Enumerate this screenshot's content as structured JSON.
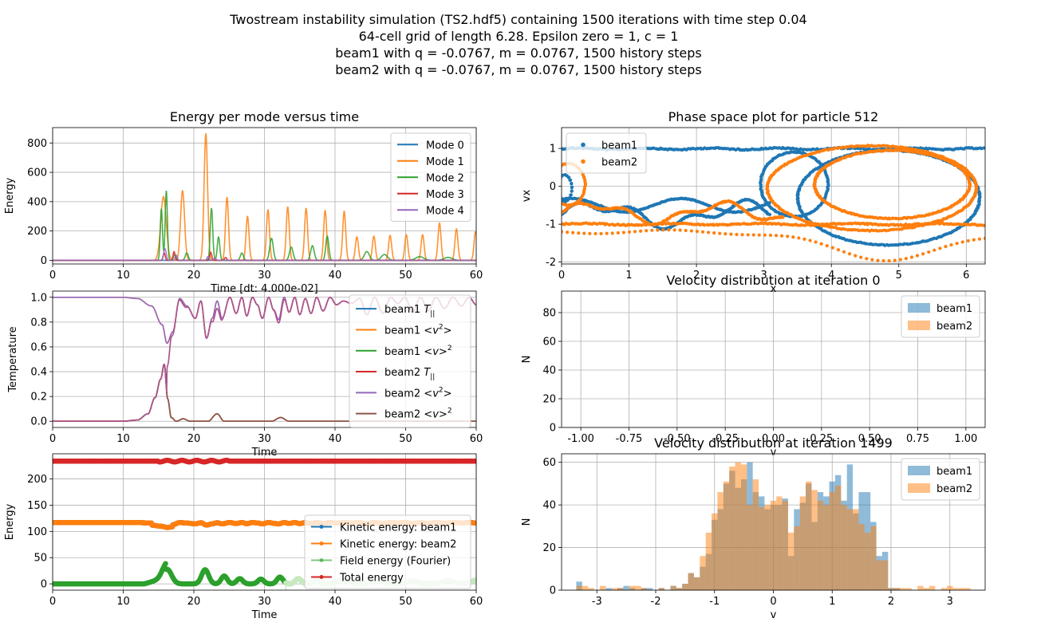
{
  "suptitle": [
    "Twostream instability simulation (TS2.hdf5) containing 1500 iterations with time step 0.04",
    "64-cell grid of length 6.28. Epsilon zero = 1, c = 1",
    "beam1 with q = -0.0767, m = 0.0767, 1500 history steps",
    "beam2 with q = -0.0767, m = 0.0767, 1500 history steps"
  ],
  "colors": {
    "c0": "#1f77b4",
    "c1": "#ff7f0e",
    "c2": "#2ca02c",
    "c3": "#d62728",
    "c4": "#9467bd",
    "c5": "#8c564b"
  },
  "chart_data": [
    {
      "id": "energy_modes",
      "type": "line",
      "title": "Energy per mode versus time",
      "xlabel": "Time [dt: 4.000e-02]",
      "ylabel": "Energy",
      "xlim": [
        0,
        60
      ],
      "ylim": [
        -25,
        905
      ],
      "xticks": [
        0,
        10,
        20,
        30,
        40,
        50,
        60
      ],
      "yticks": [
        0,
        200,
        400,
        600,
        800
      ],
      "grid": true,
      "legend": "top-right",
      "series": [
        {
          "name": "Mode 0",
          "color": "#1f77b4",
          "x": [
            0,
            60
          ],
          "y": [
            0,
            0
          ]
        },
        {
          "name": "Mode 1",
          "color": "#ff7f0e",
          "peaks": [
            [
              15.7,
              435,
              0.55
            ],
            [
              18.4,
              475,
              0.4
            ],
            [
              21.7,
              865,
              0.35
            ],
            [
              24.7,
              430,
              0.3
            ],
            [
              27.6,
              300,
              0.3
            ],
            [
              30.5,
              345,
              0.3
            ],
            [
              33.3,
              365,
              0.3
            ],
            [
              35.9,
              355,
              0.3
            ],
            [
              38.6,
              340,
              0.3
            ],
            [
              41.3,
              335,
              0.3
            ],
            [
              43.1,
              160,
              0.3
            ],
            [
              45.5,
              165,
              0.3
            ],
            [
              47.8,
              170,
              0.3
            ],
            [
              50.1,
              175,
              0.3
            ],
            [
              52.4,
              175,
              0.3
            ],
            [
              54.8,
              255,
              0.3
            ],
            [
              57.2,
              215,
              0.3
            ],
            [
              59.9,
              195,
              0.3
            ]
          ]
        },
        {
          "name": "Mode 2",
          "color": "#2ca02c",
          "peaks": [
            [
              15.4,
              350,
              0.22
            ],
            [
              16.1,
              475,
              0.22
            ],
            [
              17.3,
              40,
              0.25
            ],
            [
              19.0,
              50,
              0.3
            ],
            [
              22.5,
              355,
              0.25
            ],
            [
              23.5,
              160,
              0.25
            ],
            [
              26.8,
              50,
              0.3
            ],
            [
              31.0,
              150,
              0.35
            ],
            [
              33.8,
              90,
              0.35
            ],
            [
              36.8,
              100,
              0.35
            ],
            [
              38.9,
              165,
              0.3
            ],
            [
              44.5,
              60,
              0.5
            ],
            [
              47.0,
              40,
              0.6
            ],
            [
              52.0,
              25,
              0.8
            ],
            [
              56.0,
              20,
              0.8
            ]
          ]
        },
        {
          "name": "Mode 3",
          "color": "#d62728",
          "peaks": [
            [
              15.8,
              50,
              0.2
            ],
            [
              17.2,
              60,
              0.2
            ],
            [
              22.4,
              55,
              0.2
            ],
            [
              24.5,
              20,
              0.2
            ]
          ]
        },
        {
          "name": "Mode 4",
          "color": "#9467bd",
          "peaks": [
            [
              15.9,
              80,
              0.25
            ],
            [
              17.5,
              35,
              0.2
            ],
            [
              22.0,
              25,
              0.2
            ],
            [
              23.0,
              15,
              0.2
            ]
          ]
        }
      ]
    },
    {
      "id": "phase_space",
      "type": "scatter",
      "title": "Phase space plot for particle 512",
      "xlabel": "x",
      "ylabel": "vx",
      "xlim": [
        0,
        6.28
      ],
      "ylim": [
        -2.05,
        1.55
      ],
      "xticks": [
        0,
        1,
        2,
        3,
        4,
        5,
        6
      ],
      "yticks": [
        -2,
        -1,
        0,
        1
      ],
      "grid": true,
      "legend": "top-left",
      "series": [
        {
          "name": "beam1",
          "color": "#1f77b4"
        },
        {
          "name": "beam2",
          "color": "#ff7f0e"
        }
      ]
    },
    {
      "id": "temperature",
      "type": "line",
      "title": "",
      "xlabel": "Time",
      "ylabel": "Temperature",
      "xlim": [
        0,
        60
      ],
      "ylim": [
        -0.05,
        1.05
      ],
      "xticks": [
        0,
        10,
        20,
        30,
        40,
        50,
        60
      ],
      "yticks": [
        0.0,
        0.2,
        0.4,
        0.6,
        0.8,
        1.0
      ],
      "grid": true,
      "legend": "right",
      "series": [
        {
          "name": "beam1 T||",
          "color": "#1f77b4"
        },
        {
          "name": "beam1 <v²>",
          "color": "#ff7f0e"
        },
        {
          "name": "beam1 <v>²",
          "color": "#2ca02c"
        },
        {
          "name": "beam2 T||",
          "color": "#d62728"
        },
        {
          "name": "beam2 <v²>",
          "color": "#9467bd"
        },
        {
          "name": "beam2 <v>²",
          "color": "#8c564b"
        }
      ],
      "curve_points": {
        "v2": [
          [
            0,
            1.0
          ],
          [
            10,
            1.0
          ],
          [
            12,
            0.99
          ],
          [
            14,
            0.93
          ],
          [
            15.5,
            0.78
          ],
          [
            16.2,
            0.63
          ],
          [
            17,
            0.72
          ],
          [
            18,
            0.99
          ],
          [
            19,
            0.93
          ],
          [
            20.2,
            0.83
          ],
          [
            21,
            0.97
          ],
          [
            21.8,
            0.67
          ],
          [
            22.6,
            0.83
          ],
          [
            23.3,
            0.97
          ],
          [
            24,
            0.83
          ],
          [
            25.1,
            1.0
          ],
          [
            26,
            0.87
          ],
          [
            26.8,
            1.0
          ],
          [
            27.5,
            0.85
          ],
          [
            28.3,
            1.0
          ],
          [
            29,
            0.94
          ],
          [
            29.7,
            0.83
          ],
          [
            30.6,
            1.0
          ],
          [
            31.3,
            0.9
          ],
          [
            32,
            0.82
          ],
          [
            32.8,
            1.0
          ],
          [
            33.5,
            0.88
          ],
          [
            34.3,
            1.0
          ],
          [
            35,
            0.86
          ],
          [
            35.8,
            0.99
          ],
          [
            36.6,
            0.87
          ],
          [
            37.4,
            1.0
          ],
          [
            38.3,
            0.89
          ],
          [
            39.3,
            1.0
          ],
          [
            40.2,
            0.94
          ],
          [
            41.2,
            0.97
          ],
          [
            42.3,
            0.95
          ],
          [
            43.5,
            0.99
          ],
          [
            44.5,
            0.86
          ],
          [
            45.6,
            1.0
          ],
          [
            46.8,
            0.87
          ],
          [
            47.9,
            1.0
          ],
          [
            48.9,
            0.95
          ],
          [
            49.9,
            1.0
          ],
          [
            51,
            0.88
          ],
          [
            52.1,
            1.0
          ],
          [
            53.2,
            0.89
          ],
          [
            54.3,
            1.0
          ],
          [
            55.5,
            0.91
          ],
          [
            56.7,
            1.0
          ],
          [
            57.9,
            0.93
          ],
          [
            59,
            1.0
          ],
          [
            60,
            0.94
          ]
        ],
        "v_mean_sq": [
          [
            0,
            0.0
          ],
          [
            10,
            0.0
          ],
          [
            12,
            0.01
          ],
          [
            13.5,
            0.06
          ],
          [
            14.5,
            0.19
          ],
          [
            15.3,
            0.34
          ],
          [
            15.8,
            0.46
          ],
          [
            16.3,
            0.18
          ],
          [
            16.8,
            0.03
          ],
          [
            17.5,
            0.0
          ],
          [
            18.5,
            0.02
          ],
          [
            19.5,
            0.0
          ],
          [
            22,
            0.0
          ],
          [
            23.3,
            0.06
          ],
          [
            24.3,
            0.0
          ],
          [
            31,
            0.0
          ],
          [
            32.3,
            0.03
          ],
          [
            33.5,
            0.0
          ],
          [
            40,
            0.0
          ],
          [
            43,
            0.0
          ],
          [
            50,
            0.0
          ],
          [
            60,
            0.0
          ]
        ]
      }
    },
    {
      "id": "vdist_0",
      "type": "bar",
      "title": "Velocity distribution at iteration 0",
      "xlabel": "v",
      "ylabel": "N",
      "xlim": [
        -1.1,
        1.1
      ],
      "ylim": [
        0,
        95
      ],
      "xticks": [
        -1.0,
        -0.75,
        -0.5,
        -0.25,
        0.0,
        0.25,
        0.5,
        0.75,
        1.0
      ],
      "xtick_labels": [
        "-1.00",
        "-0.75",
        "-0.50",
        "-0.25",
        "0.00",
        "0.25",
        "0.50",
        "0.75",
        "1.00"
      ],
      "yticks": [
        0,
        20,
        40,
        60,
        80
      ],
      "grid": true,
      "legend": "top-right",
      "series": [
        {
          "name": "beam1",
          "color": "#1f77b4",
          "values": []
        },
        {
          "name": "beam2",
          "color": "#ff7f0e",
          "values": []
        }
      ]
    },
    {
      "id": "energy_total",
      "type": "line",
      "title": "",
      "xlabel": "Time",
      "ylabel": "Energy",
      "xlim": [
        0,
        60
      ],
      "ylim": [
        -12,
        248
      ],
      "xticks": [
        0,
        10,
        20,
        30,
        40,
        50,
        60
      ],
      "yticks": [
        0,
        50,
        100,
        150,
        200
      ],
      "grid": true,
      "legend": "right",
      "series": [
        {
          "name": "Kinetic energy: beam1",
          "color": "#1f77b4"
        },
        {
          "name": "Kinetic energy: beam2",
          "color": "#ff7f0e"
        },
        {
          "name": "Field energy (Fourier)",
          "color": "#2ca02c"
        },
        {
          "name": "Total energy",
          "color": "#d62728"
        }
      ]
    },
    {
      "id": "vdist_1499",
      "type": "bar",
      "title": "Velocity distribution at iteration 1499",
      "xlabel": "v",
      "ylabel": "N",
      "xlim": [
        -3.6,
        3.6
      ],
      "ylim": [
        0,
        64
      ],
      "xticks": [
        -3,
        -2,
        -1,
        0,
        1,
        2,
        3
      ],
      "yticks": [
        0,
        20,
        40,
        60
      ],
      "grid": true,
      "legend": "top-right",
      "bin_start": -3.35,
      "bin_width": 0.1,
      "series": [
        {
          "name": "beam1",
          "color": "#1f77b4",
          "values": [
            4,
            0,
            0,
            0,
            0,
            1,
            0,
            1,
            2,
            1,
            0,
            1,
            1,
            0,
            1,
            0,
            2,
            1,
            3,
            8,
            6,
            11,
            17,
            33,
            38,
            50,
            56,
            48,
            52,
            60,
            46,
            44,
            38,
            40,
            40,
            43,
            16,
            38,
            41,
            50,
            32,
            46,
            44,
            51,
            54,
            42,
            59,
            36,
            46,
            46,
            32,
            16,
            18,
            1,
            1,
            0,
            0,
            0,
            0,
            0,
            0,
            0,
            0,
            0,
            0,
            0,
            0,
            0
          ]
        },
        {
          "name": "beam2",
          "color": "#ff7f0e",
          "values": [
            2,
            2,
            1,
            0,
            2,
            0,
            1,
            1,
            0,
            2,
            2,
            1,
            0,
            0,
            1,
            0,
            2,
            1,
            3,
            8,
            6,
            16,
            27,
            36,
            46,
            51,
            58,
            60,
            59,
            40,
            52,
            39,
            40,
            42,
            44,
            42,
            27,
            30,
            44,
            51,
            47,
            42,
            40,
            46,
            49,
            40,
            38,
            38,
            31,
            27,
            30,
            14,
            14,
            1,
            1,
            1,
            1,
            0,
            2,
            1,
            2,
            0,
            1,
            2,
            1,
            1,
            1,
            0
          ]
        }
      ]
    }
  ]
}
